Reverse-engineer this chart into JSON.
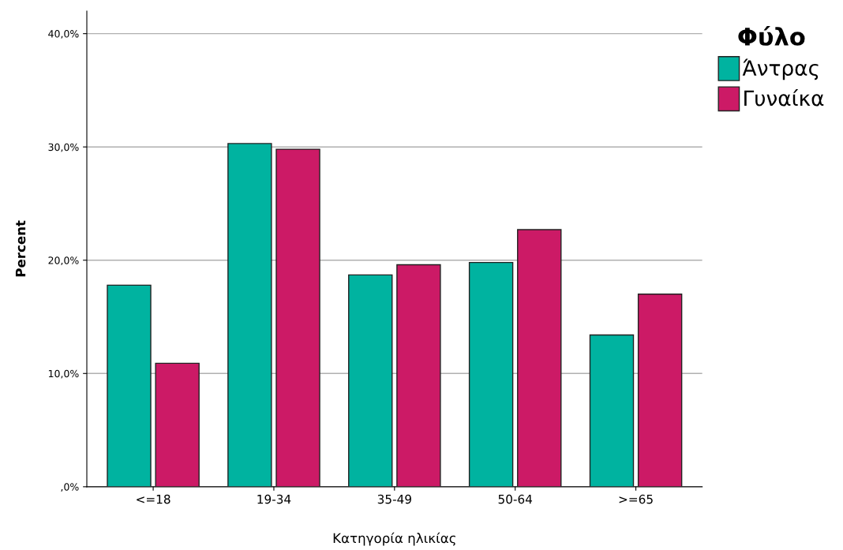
{
  "chart_data": {
    "type": "bar",
    "xlabel": "Κατηγορία ηλικίας",
    "ylabel": "Percent",
    "legend_title": "Φύλο",
    "categories": [
      "<=18",
      "19-34",
      "35-49",
      "50-64",
      ">=65"
    ],
    "series": [
      {
        "name": "Άντρας",
        "color": "#00b3a0",
        "values": [
          17.8,
          30.3,
          18.7,
          19.8,
          13.4
        ]
      },
      {
        "name": "Γυναίκα",
        "color": "#cc1a66",
        "values": [
          10.9,
          29.8,
          19.6,
          22.7,
          17.0
        ]
      }
    ],
    "ylim": [
      0,
      42
    ],
    "yticks": [
      {
        "value": 0,
        "label": ",0%"
      },
      {
        "value": 10,
        "label": "10,0%"
      },
      {
        "value": 20,
        "label": "20,0%"
      },
      {
        "value": 30,
        "label": "30,0%"
      },
      {
        "value": 40,
        "label": "40,0%"
      }
    ],
    "grid": "y",
    "legend": "right"
  }
}
